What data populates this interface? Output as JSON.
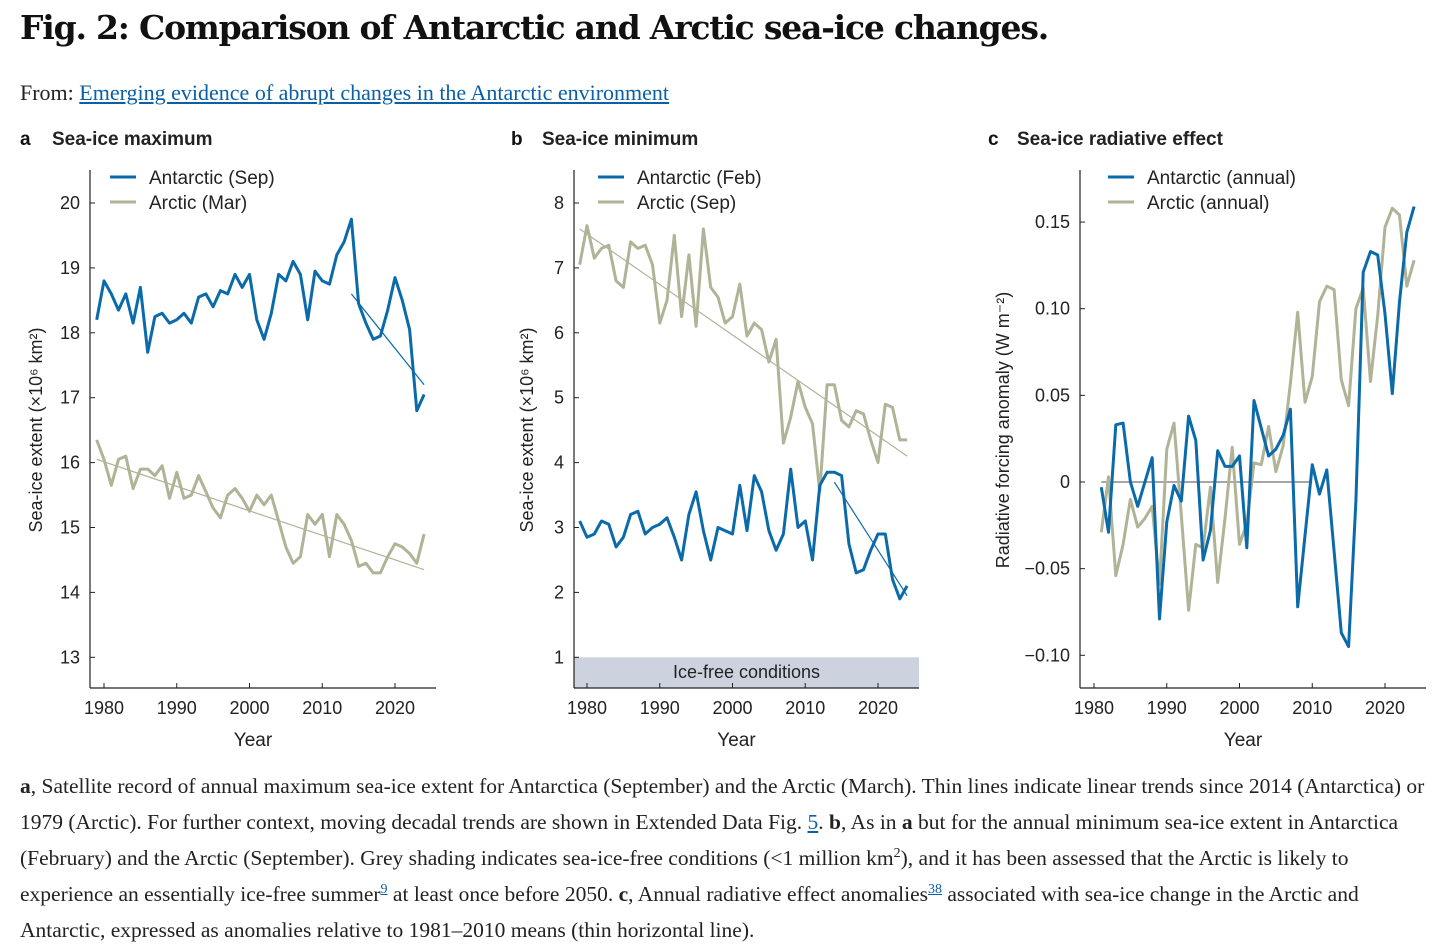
{
  "figure": {
    "title": "Fig. 2: Comparison of Antarctic and Arctic sea-ice changes.",
    "from_label": "From:",
    "from_link": "Emerging evidence of abrupt changes in the Antarctic environment"
  },
  "colors": {
    "antarctic": "#0a6aaa",
    "arctic": "#b0b396",
    "ice_free": "#cdd3de",
    "baseline": "#888888"
  },
  "chart_data": [
    {
      "type": "line",
      "panel": "a",
      "title": "Sea-ice maximum",
      "xlabel": "Year",
      "ylabel": "Sea-ice extent (×10⁶ km²)",
      "xlim": [
        1978,
        2026
      ],
      "ylim": [
        12.5,
        20.5
      ],
      "xticks": [
        1980,
        1990,
        2000,
        2010,
        2020
      ],
      "yticks": [
        13,
        14,
        15,
        16,
        17,
        18,
        19,
        20
      ],
      "legend": "top-left",
      "series": [
        {
          "name": "Antarctic (Sep)",
          "color_key": "antarctic",
          "x_start": 1979,
          "values": [
            18.2,
            18.8,
            18.6,
            18.35,
            18.6,
            18.15,
            18.7,
            17.7,
            18.25,
            18.3,
            18.15,
            18.2,
            18.3,
            18.15,
            18.55,
            18.6,
            18.4,
            18.65,
            18.6,
            18.9,
            18.7,
            18.9,
            18.2,
            17.9,
            18.3,
            18.9,
            18.8,
            19.1,
            18.9,
            18.2,
            18.95,
            18.8,
            18.75,
            19.2,
            19.4,
            19.75,
            18.45,
            18.15,
            17.9,
            17.95,
            18.35,
            18.85,
            18.5,
            18.05,
            16.8,
            17.05
          ],
          "trend": {
            "x": [
              2014,
              2024
            ],
            "y": [
              18.6,
              17.2
            ]
          }
        },
        {
          "name": "Arctic (Mar)",
          "color_key": "arctic",
          "x_start": 1979,
          "values": [
            16.35,
            16.05,
            15.65,
            16.05,
            16.1,
            15.6,
            15.9,
            15.9,
            15.8,
            15.95,
            15.45,
            15.85,
            15.45,
            15.5,
            15.8,
            15.55,
            15.3,
            15.15,
            15.5,
            15.6,
            15.45,
            15.25,
            15.5,
            15.35,
            15.5,
            15.1,
            14.7,
            14.45,
            14.55,
            15.2,
            15.05,
            15.2,
            14.55,
            15.2,
            15.05,
            14.8,
            14.4,
            14.45,
            14.3,
            14.3,
            14.55,
            14.75,
            14.7,
            14.6,
            14.45,
            14.9
          ],
          "trend": {
            "x": [
              1979,
              2024
            ],
            "y": [
              16.05,
              14.35
            ]
          }
        }
      ]
    },
    {
      "type": "line",
      "panel": "b",
      "title": "Sea-ice minimum",
      "xlabel": "Year",
      "ylabel": "Sea-ice extent (×10⁶ km²)",
      "xlim": [
        1978,
        2026
      ],
      "ylim": [
        0.5,
        8.5
      ],
      "xticks": [
        1980,
        1990,
        2000,
        2010,
        2020
      ],
      "yticks": [
        1,
        2,
        3,
        4,
        5,
        6,
        7,
        8
      ],
      "legend": "top-left",
      "shaded_region": {
        "label": "Ice-free conditions",
        "y": [
          0.5,
          1
        ]
      },
      "series": [
        {
          "name": "Antarctic (Feb)",
          "color_key": "antarctic",
          "x_start": 1979,
          "values": [
            3.1,
            2.85,
            2.9,
            3.1,
            3.05,
            2.7,
            2.85,
            3.2,
            3.25,
            2.9,
            3.0,
            3.05,
            3.15,
            2.85,
            2.5,
            3.2,
            3.55,
            2.95,
            2.5,
            3.0,
            2.95,
            2.9,
            3.65,
            2.95,
            3.8,
            3.55,
            2.95,
            2.65,
            2.9,
            3.9,
            3.0,
            3.1,
            2.5,
            3.65,
            3.85,
            3.85,
            3.8,
            2.75,
            2.3,
            2.35,
            2.65,
            2.9,
            2.9,
            2.2,
            1.9,
            2.1
          ],
          "trend": {
            "x": [
              2014,
              2024
            ],
            "y": [
              3.7,
              1.95
            ]
          }
        },
        {
          "name": "Arctic (Sep)",
          "color_key": "arctic",
          "x_start": 1979,
          "values": [
            7.05,
            7.65,
            7.15,
            7.3,
            7.35,
            6.8,
            6.7,
            7.4,
            7.3,
            7.35,
            7.05,
            6.15,
            6.5,
            7.5,
            6.25,
            7.2,
            6.1,
            7.6,
            6.7,
            6.55,
            6.15,
            6.25,
            6.75,
            5.95,
            6.15,
            6.05,
            5.55,
            5.9,
            4.3,
            4.7,
            5.25,
            4.85,
            4.6,
            3.55,
            5.2,
            5.2,
            4.65,
            4.55,
            4.8,
            4.75,
            4.35,
            4.0,
            4.9,
            4.85,
            4.35,
            4.35
          ],
          "trend": {
            "x": [
              1979,
              2024
            ],
            "y": [
              7.6,
              4.1
            ]
          }
        }
      ]
    },
    {
      "type": "line",
      "panel": "c",
      "title": "Sea-ice radiative effect",
      "xlabel": "Year",
      "ylabel": "Radiative forcing anomaly (W m⁻²)",
      "xlim": [
        1978,
        2026
      ],
      "ylim": [
        -0.119,
        0.17
      ],
      "xticks": [
        1980,
        1990,
        2000,
        2010,
        2020
      ],
      "yticks": [
        -0.1,
        -0.05,
        0,
        0.05,
        0.1,
        0.15
      ],
      "ytick_labels": [
        "−0.10",
        "−0.05",
        "0",
        "0.05",
        "0.10",
        "0.15"
      ],
      "legend": "top-left",
      "baseline": {
        "x": [
          1981,
          2010
        ],
        "y": 0
      },
      "series": [
        {
          "name": "Antarctic (annual)",
          "color_key": "antarctic",
          "x_start": 1981,
          "values": [
            -0.003,
            -0.029,
            0.033,
            0.034,
            0,
            -0.014,
            0,
            0.014,
            -0.079,
            -0.023,
            -0.002,
            -0.011,
            0.038,
            0.024,
            -0.045,
            -0.028,
            0.018,
            0.009,
            0.009,
            0.015,
            -0.038,
            0.047,
            0.031,
            0.015,
            0.019,
            0.027,
            0.042,
            -0.072,
            -0.031,
            0.01,
            -0.007,
            0.007,
            -0.04,
            -0.087,
            -0.095,
            -0.011,
            0.121,
            0.133,
            0.131,
            0.097,
            0.051,
            0.104,
            0.144,
            0.159
          ]
        },
        {
          "name": "Arctic (annual)",
          "color_key": "arctic",
          "x_start": 1981,
          "values": [
            -0.029,
            0.003,
            -0.054,
            -0.036,
            -0.01,
            -0.026,
            -0.021,
            -0.014,
            -0.059,
            0.019,
            0.034,
            -0.019,
            -0.074,
            -0.036,
            -0.038,
            -0.003,
            -0.058,
            -0.021,
            0.02,
            -0.036,
            -0.024,
            0.011,
            0.01,
            0.032,
            0.006,
            0.021,
            0.057,
            0.098,
            0.046,
            0.061,
            0.104,
            0.113,
            0.111,
            0.059,
            0.044,
            0.1,
            0.112,
            0.058,
            0.096,
            0.147,
            0.158,
            0.154,
            0.113,
            0.128
          ]
        }
      ]
    }
  ],
  "caption": [
    {
      "t": "a",
      "s": "b"
    },
    {
      "t": ", Satellite record of annual maximum sea-ice extent for Antarctica (September) and the Arctic (March). Thin lines indicate linear trends since 2014 (Antarctica) or 1979 (Arctic). For further context, moving decadal trends are shown in Extended Data Fig. "
    },
    {
      "t": "5",
      "s": "a"
    },
    {
      "t": ". "
    },
    {
      "t": "b",
      "s": "b"
    },
    {
      "t": ", As in "
    },
    {
      "t": "a",
      "s": "b"
    },
    {
      "t": " but for the annual minimum sea-ice extent in Antarctica (February) and the Arctic (September). Grey shading indicates sea-ice-free conditions (<1 million km"
    },
    {
      "t": "2",
      "s": "sup"
    },
    {
      "t": "), and it has been assessed that the Arctic is likely to experience an essentially ice-free summer"
    },
    {
      "t": "9",
      "s": "supa"
    },
    {
      "t": " at least once before 2050. "
    },
    {
      "t": "c",
      "s": "b"
    },
    {
      "t": ", Annual radiative effect anomalies"
    },
    {
      "t": "38",
      "s": "supa"
    },
    {
      "t": " associated with sea-ice change in the Arctic and Antarctic, expressed as anomalies relative to 1981–2010 means (thin horizontal line)."
    }
  ]
}
